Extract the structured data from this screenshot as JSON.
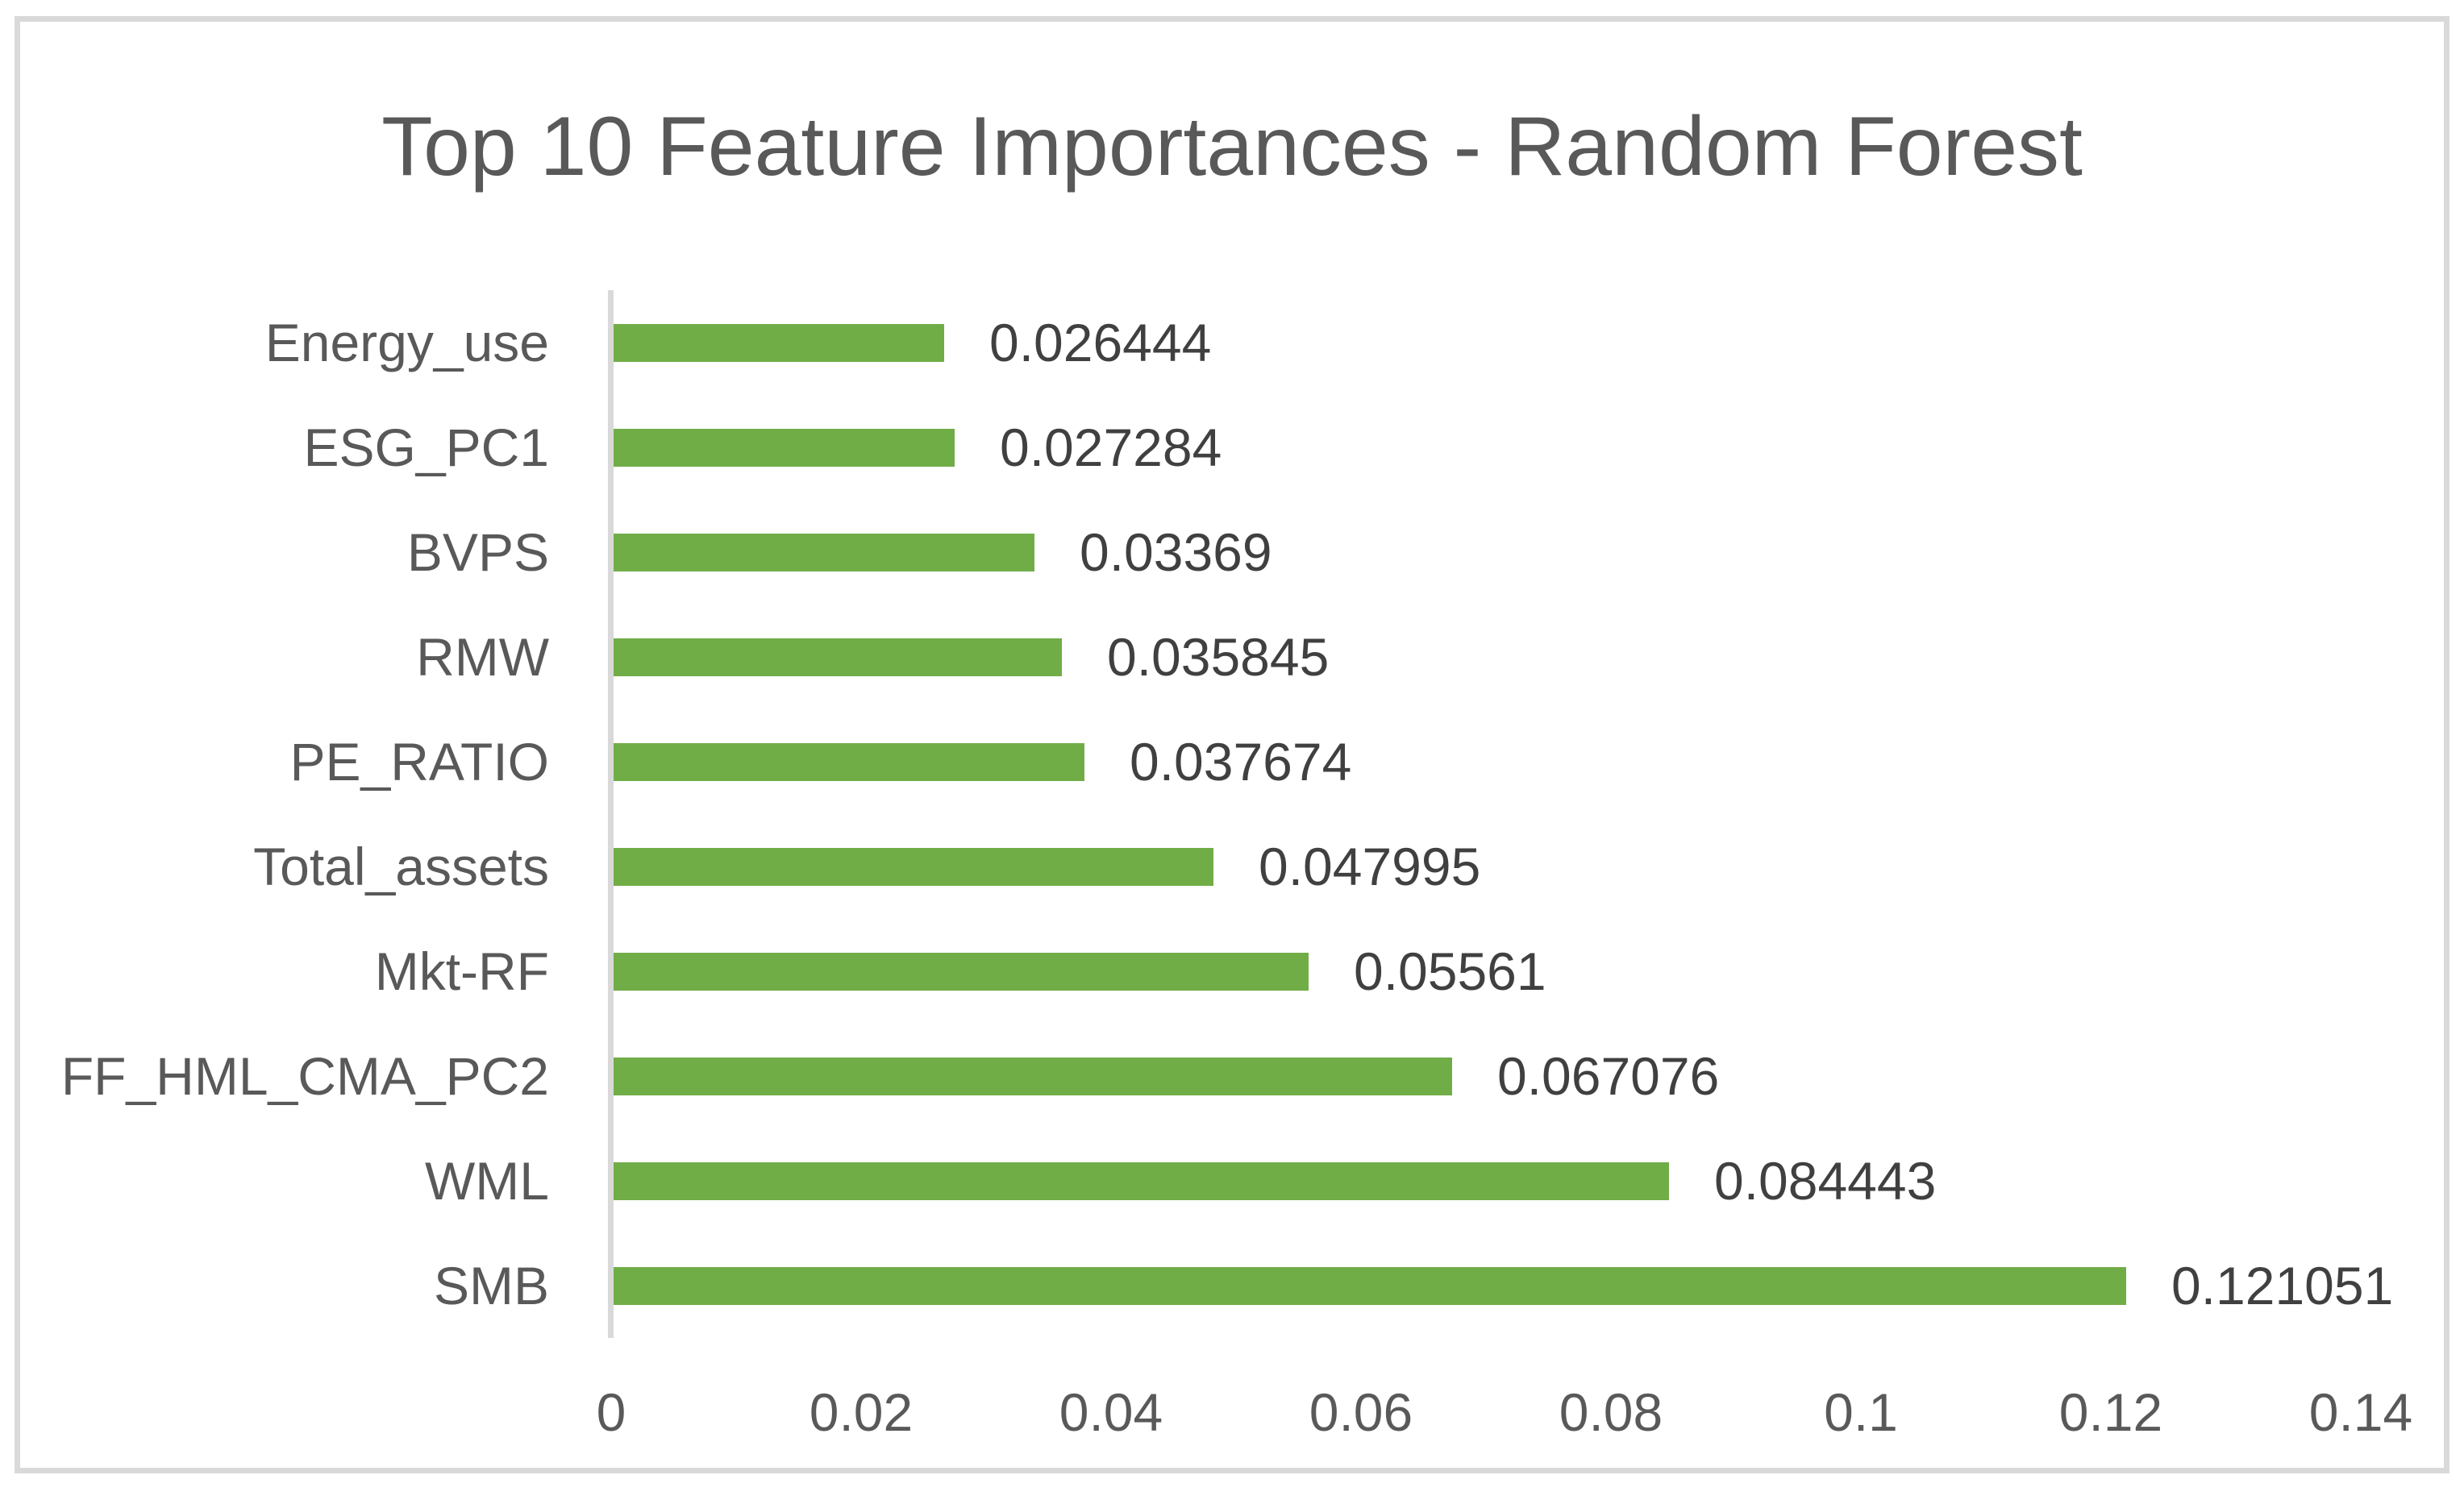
{
  "chart_data": {
    "type": "bar",
    "orientation": "horizontal",
    "title": "Top 10 Feature Importances - Random Forest",
    "categories": [
      "Energy_use",
      "ESG_PC1",
      "BVPS",
      "RMW",
      "PE_RATIO",
      "Total_assets",
      "Mkt-RF",
      "FF_HML_CMA_PC2",
      "WML",
      "SMB"
    ],
    "values": [
      0.026444,
      0.027284,
      0.03369,
      0.035845,
      0.037674,
      0.047995,
      0.05561,
      0.067076,
      0.084443,
      0.121051
    ],
    "value_labels": [
      "0.026444",
      "0.027284",
      "0.03369",
      "0.035845",
      "0.037674",
      "0.047995",
      "0.05561",
      "0.067076",
      "0.084443",
      "0.121051"
    ],
    "x_ticks": [
      {
        "label": "0",
        "value": 0.0
      },
      {
        "label": "0.02",
        "value": 0.02
      },
      {
        "label": "0.04",
        "value": 0.04
      },
      {
        "label": "0.06",
        "value": 0.06
      },
      {
        "label": "0.08",
        "value": 0.08
      },
      {
        "label": "0.1",
        "value": 0.1
      },
      {
        "label": "0.12",
        "value": 0.12
      },
      {
        "label": "0.14",
        "value": 0.14
      }
    ],
    "xlim": [
      0,
      0.14
    ],
    "ylabel": "",
    "xlabel": "",
    "grid": false,
    "legend": "none",
    "colors": {
      "bar": "#70ad47",
      "title_text": "#595959",
      "category_text": "#595959",
      "value_text": "#404040",
      "tick_text": "#595959",
      "axis_line": "#d9d9d9",
      "frame_border": "#d9d9d9",
      "background": "#ffffff"
    }
  }
}
